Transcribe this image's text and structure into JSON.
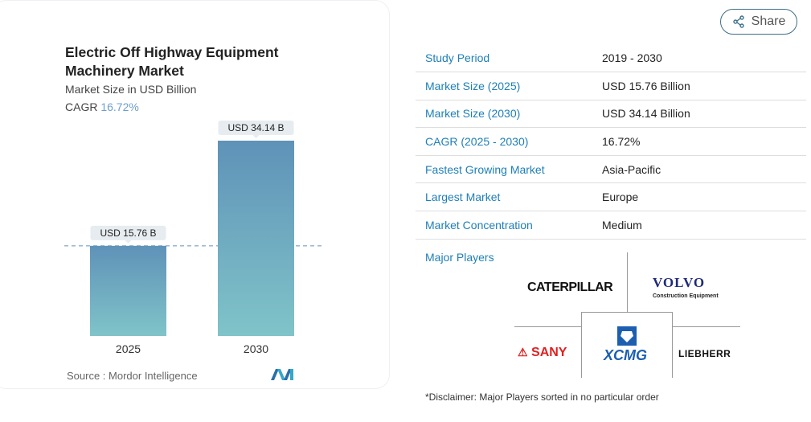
{
  "share": {
    "label": "Share",
    "icon": "share-icon"
  },
  "chart_data": {
    "type": "bar",
    "title": "Electric Off Highway Equipment Machinery Market",
    "subtitle": "Market Size in USD Billion",
    "cagr_label": "CAGR",
    "cagr_value": "16.72%",
    "categories": [
      "2025",
      "2030"
    ],
    "values": [
      15.76,
      34.14
    ],
    "data_labels": [
      "USD 15.76 B",
      "USD 34.14 B"
    ],
    "reference_line": "dashed at 2025 value",
    "colors": {
      "bar_top": "#5f92b8",
      "bar_bottom": "#80c4c9",
      "cagr": "#6c9fcc"
    },
    "source": "Source :  Mordor Intelligence"
  },
  "table": [
    {
      "key": "Study Period",
      "value": "2019 - 2030"
    },
    {
      "key": "Market Size (2025)",
      "value": "USD 15.76 Billion"
    },
    {
      "key": "Market Size (2030)",
      "value": "USD 34.14 Billion"
    },
    {
      "key": "CAGR (2025 - 2030)",
      "value": "16.72%"
    },
    {
      "key": "Fastest Growing Market",
      "value": "Asia-Pacific"
    },
    {
      "key": "Largest Market",
      "value": "Europe"
    },
    {
      "key": "Market Concentration",
      "value": "Medium"
    }
  ],
  "major_players": {
    "label": "Major Players",
    "logos": [
      "CATERPILLAR",
      "VOLVO",
      "Construction Equipment",
      "SANY",
      "XCMG",
      "LIEBHERR"
    ]
  },
  "disclaimer": "*Disclaimer: Major Players sorted in no particular order"
}
